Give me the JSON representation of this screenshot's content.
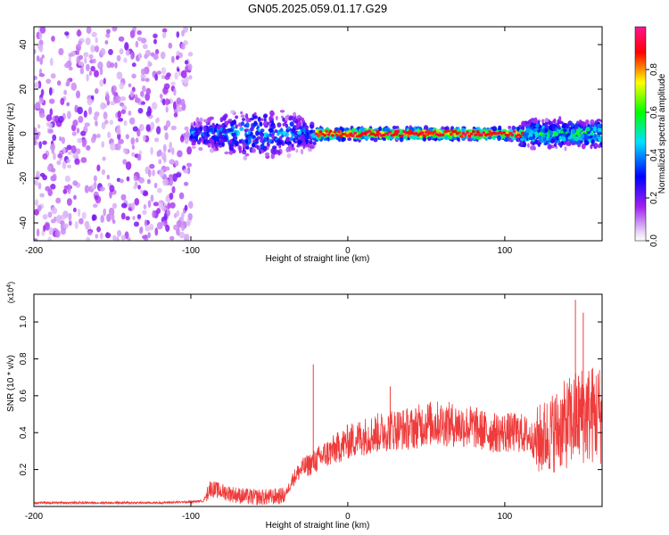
{
  "title": "GN05.2025.059.01.17.G29",
  "colors": {
    "snr_line": "#ef3b3b",
    "spectrogram_core": "#6a0dad",
    "colormap": [
      "#f2e8fb",
      "#a020f0",
      "#0000ff",
      "#00ffff",
      "#00ff00",
      "#ffff00",
      "#ff0000",
      "#ff1493"
    ]
  },
  "chart_data": [
    {
      "type": "heatmap",
      "xlabel": "Height of straight line (km)",
      "ylabel": "Frequency (Hz)",
      "xlim": [
        -200,
        162
      ],
      "ylim": [
        -48,
        48
      ],
      "xticks": [
        -200,
        -100,
        0,
        100
      ],
      "yticks": [
        -40,
        -20,
        0,
        20,
        40
      ],
      "colorbar": {
        "label": "Normalized spectral amplitude",
        "range": [
          0,
          1
        ],
        "ticks": [
          "0.0",
          "0.2",
          "0.4",
          "0.6",
          "0.8"
        ],
        "tick_values": [
          0,
          0.2,
          0.4,
          0.6,
          0.8
        ]
      },
      "regions": [
        {
          "x_range": [
            -200,
            -100
          ],
          "freq_spread_hz": 48,
          "amplitude": "low",
          "description_values": [
            0.05,
            0.2
          ]
        },
        {
          "x_range": [
            -100,
            -20
          ],
          "freq_spread_hz": 12,
          "amplitude": "medium",
          "description_values": [
            0.2,
            0.5
          ]
        },
        {
          "x_range": [
            -20,
            110
          ],
          "freq_spread_hz": 3,
          "amplitude": "high",
          "description_values": [
            0.6,
            1.0
          ]
        },
        {
          "x_range": [
            110,
            162
          ],
          "freq_spread_hz": 7,
          "amplitude": "medium",
          "description_values": [
            0.3,
            0.7
          ]
        }
      ]
    },
    {
      "type": "line",
      "xlabel": "Height of straight line (km)",
      "ylabel": "SNR (10 * v/v)",
      "y_multiplier": "(x10^4)",
      "xlim": [
        -200,
        162
      ],
      "ylim": [
        0,
        1.15
      ],
      "xticks": [
        -200,
        -100,
        0,
        100
      ],
      "yticks": [
        0.2,
        0.4,
        0.6,
        0.8,
        1.0
      ],
      "series": [
        {
          "x": [
            -200,
            -180,
            -160,
            -140,
            -120,
            -100,
            -92,
            -88,
            -80,
            -70,
            -60,
            -50,
            -40,
            -35,
            -30,
            -20,
            -15,
            -10,
            0,
            10,
            20,
            30,
            40,
            50,
            60,
            70,
            80,
            90,
            100,
            110,
            115,
            120,
            130,
            140,
            150,
            160
          ],
          "y": [
            0.02,
            0.02,
            0.02,
            0.02,
            0.02,
            0.025,
            0.03,
            0.1,
            0.08,
            0.06,
            0.05,
            0.05,
            0.06,
            0.15,
            0.2,
            0.25,
            0.28,
            0.3,
            0.35,
            0.38,
            0.4,
            0.42,
            0.42,
            0.45,
            0.45,
            0.44,
            0.43,
            0.4,
            0.4,
            0.4,
            0.38,
            0.35,
            0.4,
            0.45,
            0.5,
            0.5
          ],
          "peaks": [
            {
              "x": -22,
              "y": 0.77
            },
            {
              "x": 27,
              "y": 0.65
            },
            {
              "x": 145,
              "y": 1.12
            },
            {
              "x": 150,
              "y": 1.05
            }
          ]
        }
      ]
    }
  ]
}
